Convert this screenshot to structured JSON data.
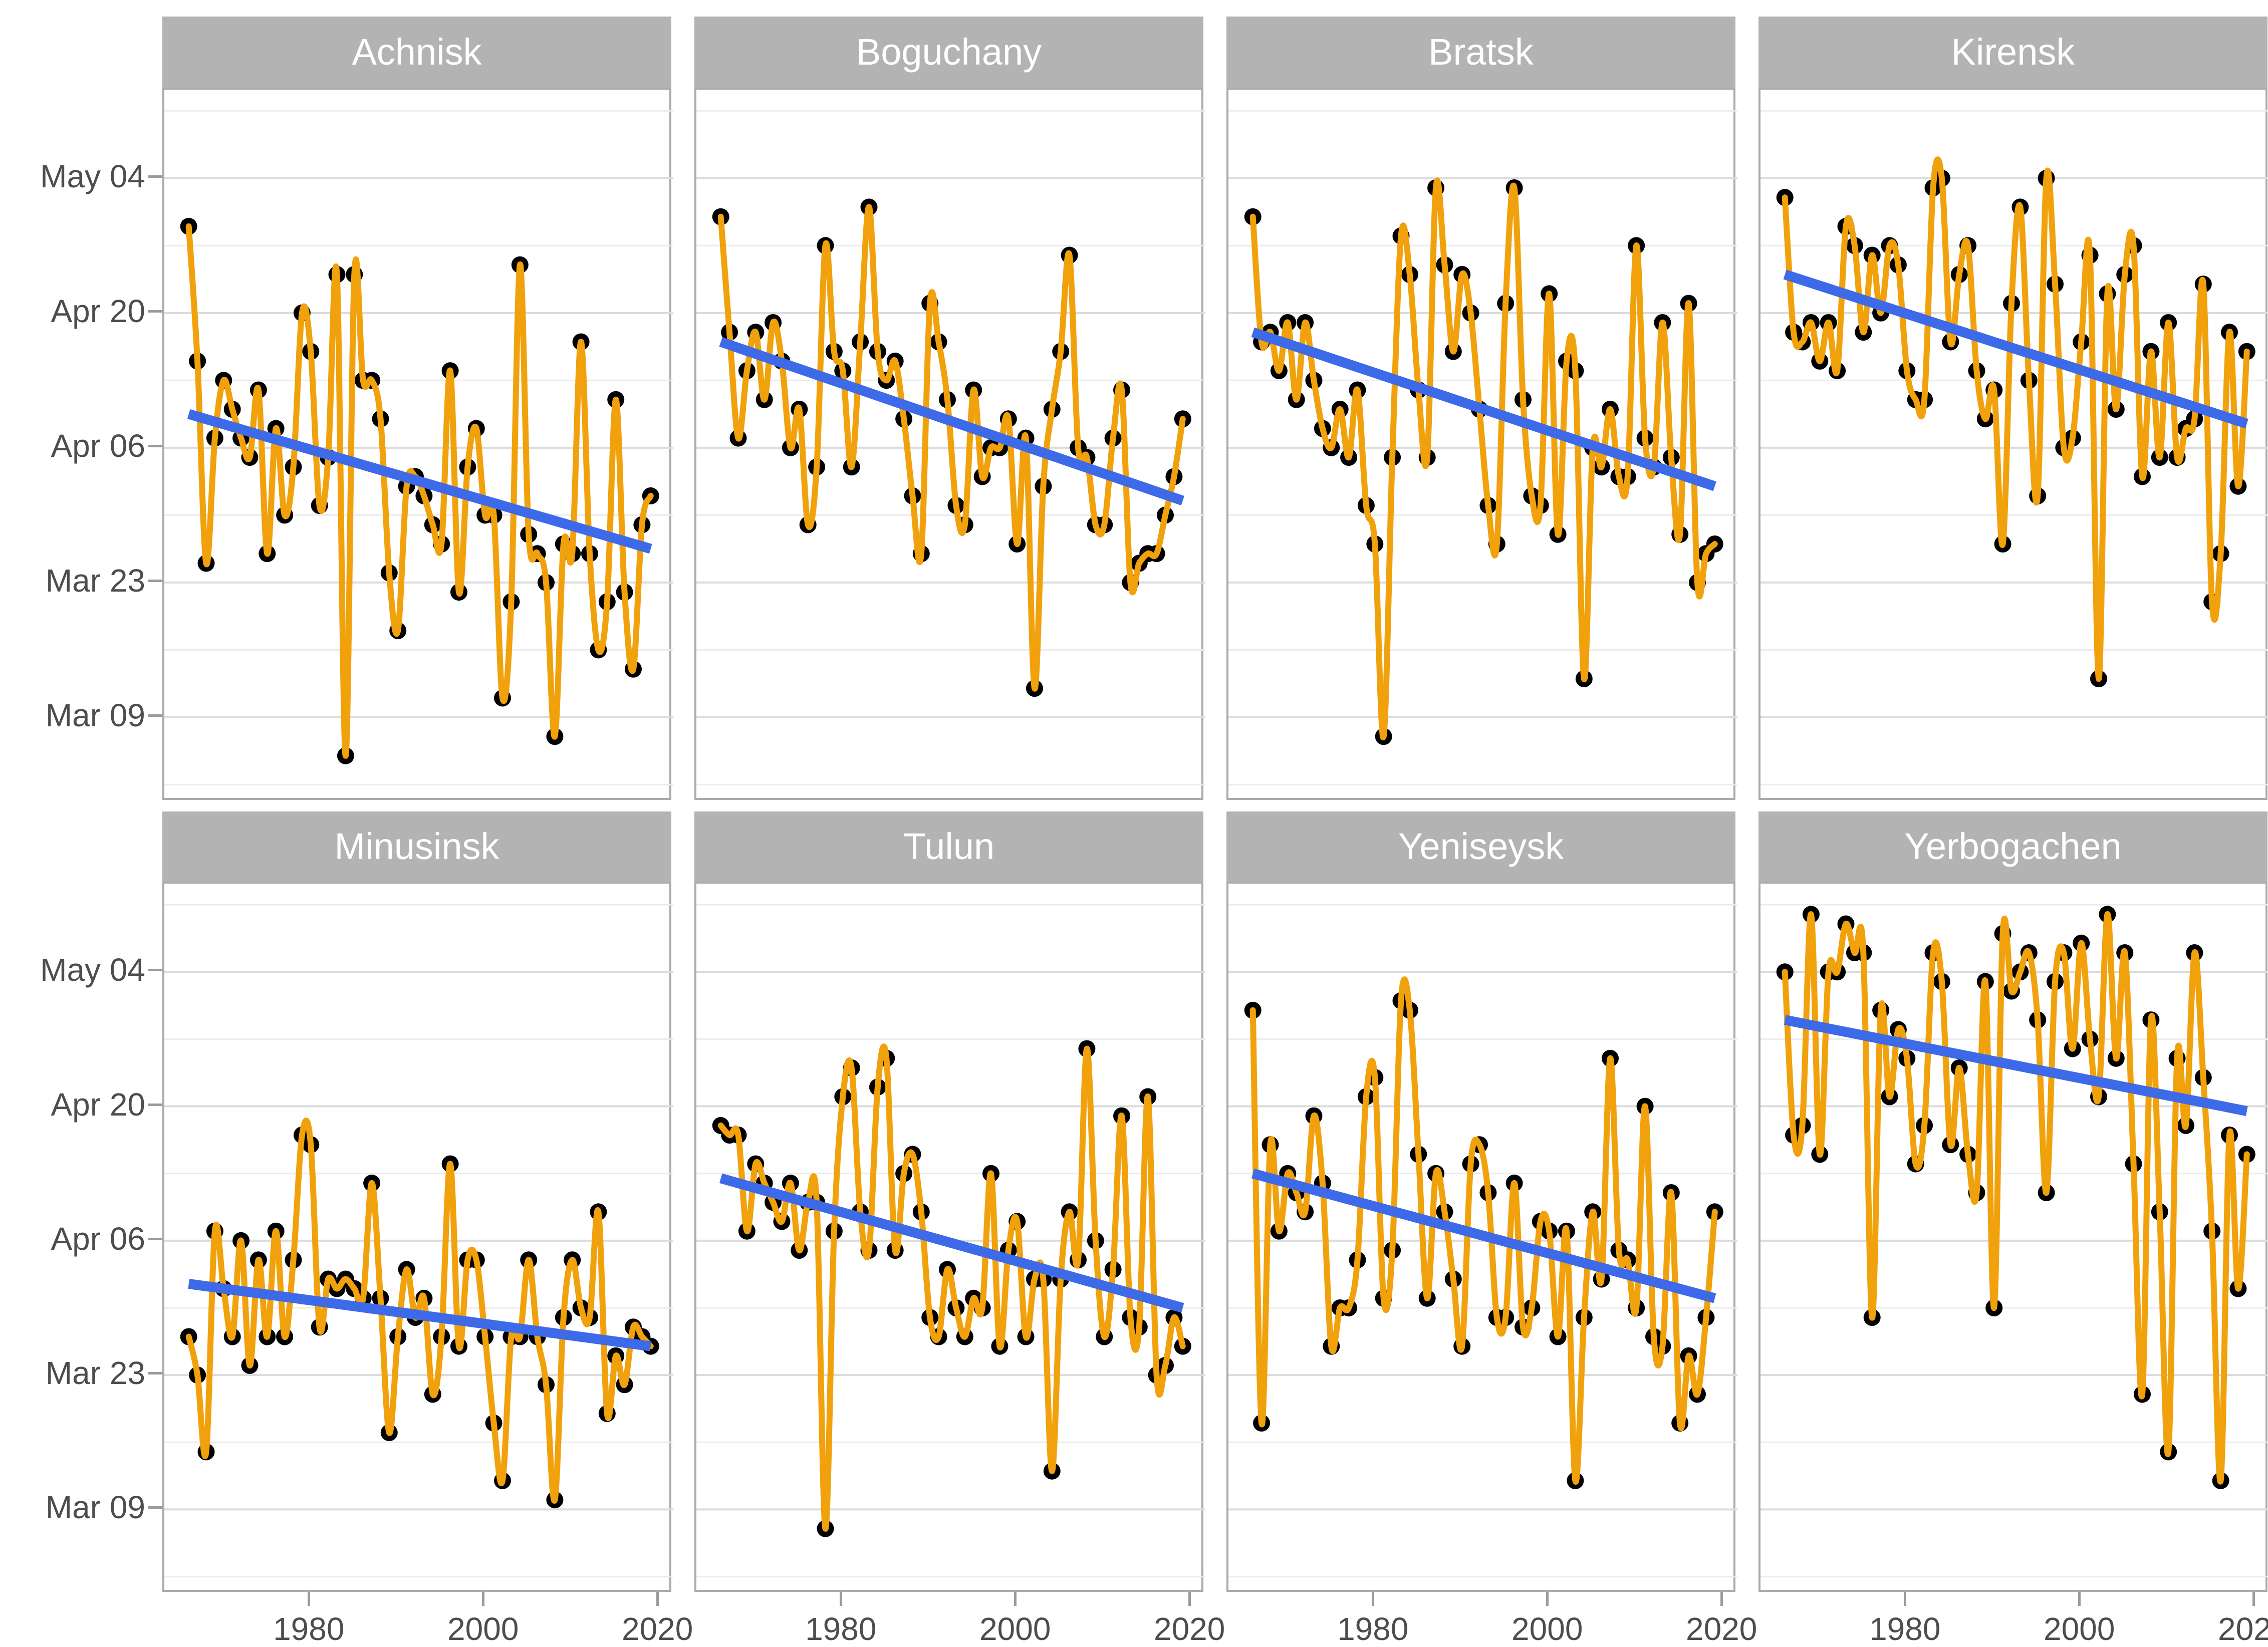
{
  "chart_data": {
    "type": "line",
    "title": "",
    "xlabel": "",
    "ylabel": "",
    "facet_layout": {
      "rows": 2,
      "cols": 4,
      "legend": "none",
      "grid": "horizontal major + minor"
    },
    "y_value_encoding": "days after Mar 1 (Mar 09 = 8, Mar 23 = 22, Apr 06 = 36, Apr 20 = 50, May 04 = 64)",
    "x": {
      "start_year": 1966,
      "end_year": 2019,
      "ticks": [
        "1980",
        "2000",
        "2020"
      ],
      "tick_years": [
        1980,
        2000,
        2020
      ],
      "domain": [
        1963.2,
        2021.6
      ]
    },
    "y": {
      "tick_labels": [
        "May 04",
        "Apr 20",
        "Apr 06",
        "Mar 23",
        "Mar 09"
      ],
      "tick_days": [
        64,
        50,
        36,
        22,
        8
      ],
      "minor_grid_days": [
        71,
        57,
        43,
        29,
        15,
        1
      ],
      "domain_top_day": 73.2,
      "domain_bottom_day": -0.8
    },
    "facets": [
      {
        "name": "Achnisk",
        "values": [
          59,
          45,
          24,
          37,
          43,
          40,
          37,
          35,
          42,
          25,
          38,
          29,
          34,
          50,
          46,
          30,
          35,
          54,
          4,
          54,
          43,
          43,
          39,
          23,
          17,
          32,
          33,
          31,
          28,
          26,
          44,
          21,
          34,
          38,
          29,
          29,
          10,
          20,
          55,
          27,
          25,
          22,
          6,
          26,
          25,
          47,
          25,
          15,
          20,
          41,
          21,
          13,
          28,
          31
        ],
        "trend": {
          "start_day": 39.5,
          "end_day": 25.5
        }
      },
      {
        "name": "Boguchany",
        "values": [
          60,
          48,
          37,
          44,
          48,
          41,
          49,
          45,
          36,
          40,
          28,
          34,
          57,
          46,
          44,
          34,
          47,
          61,
          46,
          43,
          45,
          39,
          31,
          25,
          51,
          47,
          41,
          30,
          28,
          42,
          33,
          36,
          36,
          39,
          26,
          37,
          11,
          32,
          40,
          46,
          56,
          36,
          35,
          28,
          28,
          37,
          42,
          22,
          24,
          25,
          25,
          29,
          33,
          39
        ],
        "trend": {
          "start_day": 47.0,
          "end_day": 30.5
        }
      },
      {
        "name": "Bratsk",
        "values": [
          60,
          47,
          48,
          44,
          49,
          41,
          49,
          43,
          38,
          36,
          40,
          35,
          42,
          30,
          26,
          6,
          35,
          58,
          54,
          42,
          35,
          63,
          55,
          46,
          54,
          50,
          40,
          30,
          26,
          51,
          63,
          41,
          31,
          30,
          52,
          27,
          45,
          44,
          12,
          36,
          34,
          40,
          33,
          33,
          57,
          37,
          34,
          49,
          35,
          27,
          51,
          22,
          25,
          26
        ],
        "trend": {
          "start_day": 48.0,
          "end_day": 32.0
        }
      },
      {
        "name": "Kirensk",
        "values": [
          62,
          48,
          47,
          49,
          45,
          49,
          44,
          59,
          57,
          48,
          56,
          50,
          57,
          55,
          44,
          41,
          41,
          63,
          64,
          47,
          54,
          57,
          44,
          39,
          42,
          26,
          51,
          61,
          43,
          31,
          64,
          53,
          36,
          37,
          47,
          56,
          12,
          52,
          40,
          54,
          57,
          33,
          46,
          35,
          49,
          35,
          38,
          39,
          53,
          20,
          25,
          48,
          32,
          46
        ],
        "trend": {
          "start_day": 54.0,
          "end_day": 38.5
        }
      },
      {
        "name": "Minusinsk",
        "values": [
          26,
          22,
          14,
          37,
          31,
          26,
          36,
          23,
          34,
          26,
          37,
          26,
          34,
          47,
          46,
          27,
          32,
          31,
          32,
          31,
          30,
          42,
          30,
          16,
          26,
          33,
          28,
          30,
          20,
          26,
          44,
          25,
          34,
          34,
          26,
          17,
          11,
          26,
          26,
          34,
          26,
          21,
          9,
          28,
          34,
          29,
          28,
          39,
          18,
          24,
          21,
          27,
          26,
          25
        ],
        "trend": {
          "start_day": 31.5,
          "end_day": 25.0
        }
      },
      {
        "name": "Tulun",
        "values": [
          48,
          47,
          47,
          37,
          44,
          42,
          40,
          38,
          42,
          35,
          40,
          40,
          6,
          37,
          51,
          54,
          39,
          35,
          52,
          55,
          35,
          43,
          45,
          39,
          28,
          26,
          33,
          29,
          26,
          30,
          29,
          43,
          25,
          35,
          38,
          26,
          32,
          32,
          12,
          32,
          39,
          34,
          56,
          36,
          26,
          33,
          49,
          28,
          27,
          51,
          22,
          23,
          28,
          25
        ],
        "trend": {
          "start_day": 42.5,
          "end_day": 29.0
        }
      },
      {
        "name": "Yeniseysk",
        "values": [
          60,
          17,
          46,
          37,
          43,
          41,
          39,
          49,
          42,
          25,
          29,
          29,
          34,
          51,
          53,
          30,
          35,
          61,
          60,
          45,
          30,
          43,
          39,
          32,
          25,
          44,
          46,
          41,
          28,
          28,
          42,
          27,
          29,
          38,
          37,
          26,
          37,
          11,
          28,
          39,
          32,
          55,
          35,
          34,
          29,
          50,
          26,
          25,
          41,
          17,
          24,
          20,
          28,
          39
        ],
        "trend": {
          "start_day": 43.0,
          "end_day": 30.0
        }
      },
      {
        "name": "Yerbogachen",
        "values": [
          64,
          47,
          48,
          70,
          45,
          64,
          64,
          69,
          66,
          66,
          28,
          60,
          51,
          58,
          55,
          44,
          48,
          66,
          63,
          46,
          54,
          45,
          41,
          63,
          29,
          68,
          62,
          64,
          66,
          59,
          41,
          63,
          66,
          56,
          67,
          57,
          51,
          70,
          55,
          66,
          44,
          20,
          59,
          39,
          14,
          55,
          48,
          66,
          53,
          37,
          11,
          47,
          31,
          45
        ],
        "trend": {
          "start_day": 59.0,
          "end_day": 49.5
        }
      }
    ]
  },
  "colors": {
    "series_line": "#F0A10B",
    "data_point": "#000000",
    "trend_line": "#3D6AE8",
    "strip_bg": "#B3B3B3",
    "strip_text": "#FFFFFF",
    "axis_text": "#4D4D4D",
    "grid_major": "#DBDBDB",
    "grid_minor": "#ECECEC",
    "panel_border": "#ABABAB",
    "tick_mark": "#9B9B9B",
    "background": "#FFFFFF"
  }
}
